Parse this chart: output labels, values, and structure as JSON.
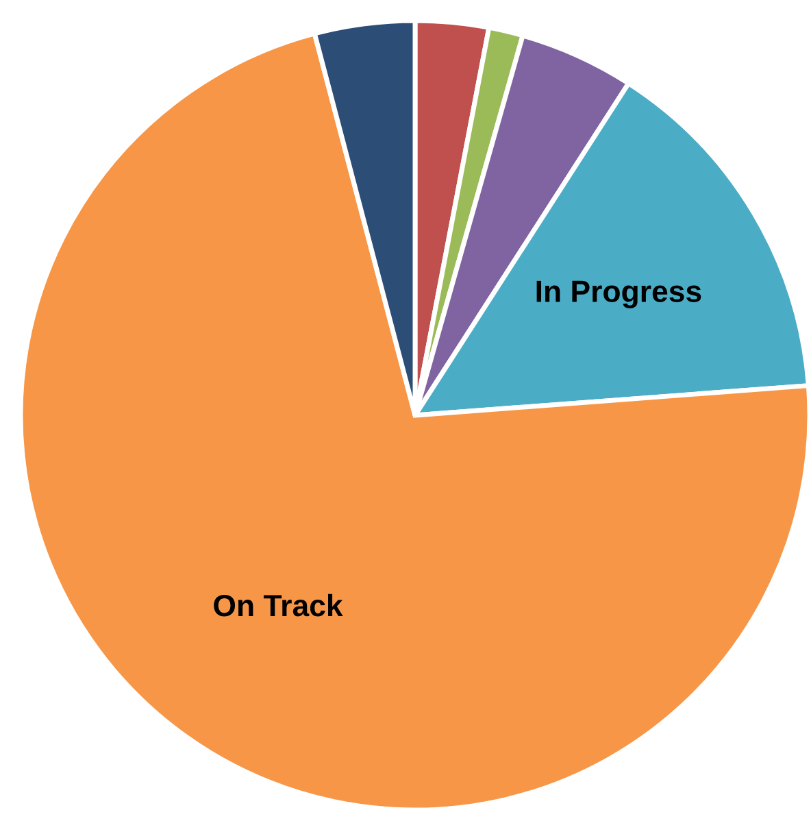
{
  "chart_data": {
    "type": "pie",
    "categories": [
      null,
      null,
      null,
      "In Progress",
      "On Track",
      null
    ],
    "values": [
      3.0,
      1.4,
      4.7,
      14.7,
      72.1,
      4.1
    ],
    "colors": [
      "#c0504d",
      "#9bbb59",
      "#8064a2",
      "#4bacc6",
      "#f79646",
      "#2c4d75"
    ]
  }
}
